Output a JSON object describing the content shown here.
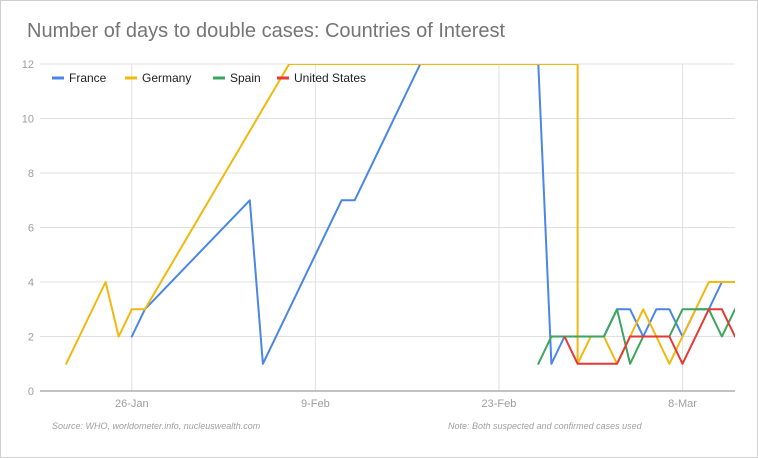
{
  "chart_data": {
    "type": "line",
    "title": "Number of days to double cases: Countries of Interest",
    "xlabel": "",
    "ylabel": "",
    "x_ticks": [
      "26-Jan",
      "9-Feb",
      "23-Feb",
      "8-Mar"
    ],
    "y_ticks": [
      "0",
      "2",
      "4",
      "6",
      "8",
      "10",
      "12"
    ],
    "xlim": [
      "2020-01-19",
      "2020-03-12"
    ],
    "ylim": [
      0,
      12
    ],
    "legend_position": "top-left",
    "grid": true,
    "series": [
      {
        "name": "France",
        "color": "#4a86e8",
        "points": [
          [
            "2020-01-26",
            2
          ],
          [
            "2020-01-27",
            3
          ],
          [
            "2020-02-04",
            7
          ],
          [
            "2020-02-05",
            1
          ],
          [
            "2020-02-11",
            7
          ],
          [
            "2020-02-12",
            7
          ],
          [
            "2020-02-17",
            12
          ],
          [
            "2020-02-26",
            12
          ],
          [
            "2020-02-27",
            1
          ],
          [
            "2020-02-28",
            2
          ],
          [
            "2020-02-29",
            2
          ],
          [
            "2020-03-01",
            2
          ],
          [
            "2020-03-02",
            2
          ],
          [
            "2020-03-03",
            3
          ],
          [
            "2020-03-04",
            3
          ],
          [
            "2020-03-05",
            2
          ],
          [
            "2020-03-06",
            3
          ],
          [
            "2020-03-07",
            3
          ],
          [
            "2020-03-08",
            2
          ],
          [
            "2020-03-09",
            3
          ],
          [
            "2020-03-10",
            3
          ],
          [
            "2020-03-11",
            4
          ],
          [
            "2020-03-12",
            4
          ]
        ]
      },
      {
        "name": "Germany",
        "color": "#f1b80e",
        "points": [
          [
            "2020-01-21",
            1
          ],
          [
            "2020-01-24",
            4
          ],
          [
            "2020-01-25",
            2
          ],
          [
            "2020-01-26",
            3
          ],
          [
            "2020-01-27",
            3
          ],
          [
            "2020-02-07",
            12
          ],
          [
            "2020-02-29",
            12
          ],
          [
            "2020-02-29",
            1
          ],
          [
            "2020-03-01",
            2
          ],
          [
            "2020-03-02",
            2
          ],
          [
            "2020-03-03",
            1
          ],
          [
            "2020-03-04",
            2
          ],
          [
            "2020-03-05",
            3
          ],
          [
            "2020-03-06",
            2
          ],
          [
            "2020-03-07",
            1
          ],
          [
            "2020-03-08",
            2
          ],
          [
            "2020-03-09",
            3
          ],
          [
            "2020-03-10",
            4
          ],
          [
            "2020-03-11",
            4
          ],
          [
            "2020-03-12",
            4
          ]
        ]
      },
      {
        "name": "Spain",
        "color": "#3ba55c",
        "points": [
          [
            "2020-02-26",
            1
          ],
          [
            "2020-02-27",
            2
          ],
          [
            "2020-02-28",
            2
          ],
          [
            "2020-02-29",
            2
          ],
          [
            "2020-03-01",
            2
          ],
          [
            "2020-03-02",
            2
          ],
          [
            "2020-03-03",
            3
          ],
          [
            "2020-03-04",
            1
          ],
          [
            "2020-03-05",
            2
          ],
          [
            "2020-03-06",
            2
          ],
          [
            "2020-03-07",
            2
          ],
          [
            "2020-03-08",
            3
          ],
          [
            "2020-03-09",
            3
          ],
          [
            "2020-03-10",
            3
          ],
          [
            "2020-03-11",
            2
          ],
          [
            "2020-03-12",
            3
          ]
        ]
      },
      {
        "name": "United States",
        "color": "#e53935",
        "points": [
          [
            "2020-02-28",
            2
          ],
          [
            "2020-02-29",
            1
          ],
          [
            "2020-03-01",
            1
          ],
          [
            "2020-03-02",
            1
          ],
          [
            "2020-03-03",
            1
          ],
          [
            "2020-03-04",
            2
          ],
          [
            "2020-03-05",
            2
          ],
          [
            "2020-03-06",
            2
          ],
          [
            "2020-03-07",
            2
          ],
          [
            "2020-03-08",
            1
          ],
          [
            "2020-03-09",
            2
          ],
          [
            "2020-03-10",
            3
          ],
          [
            "2020-03-11",
            3
          ],
          [
            "2020-03-12",
            2
          ]
        ]
      }
    ]
  },
  "footer": {
    "source": "Source: WHO, worldometer.info, nucleuswealth.com",
    "note": "Note: Both suspected and confirmed cases used"
  },
  "colors": {
    "grid": "#e0e0e0",
    "axis": "#9e9e9e",
    "tick_text": "#9e9e9e",
    "legend_text": "#222222"
  }
}
